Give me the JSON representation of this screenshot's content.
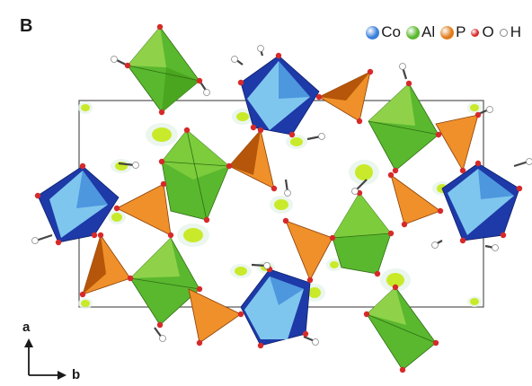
{
  "panel_label": "B",
  "legend": [
    {
      "label": "Co",
      "color": "#3a7fd9",
      "size": "large"
    },
    {
      "label": "Al",
      "color": "#5ab82e",
      "size": "large"
    },
    {
      "label": "P",
      "color": "#e07c1a",
      "size": "large"
    },
    {
      "label": "O",
      "color": "#d62a2a",
      "size": "small"
    },
    {
      "label": "H",
      "color": "#ffffff",
      "size": "small"
    }
  ],
  "axes": {
    "vertical": "a",
    "horizontal": "b"
  },
  "colors": {
    "co_dark": "#1d3aa8",
    "co_light": "#7fc6ee",
    "al_dark": "#3f9a1c",
    "al_light": "#7dcc3c",
    "p_dark": "#b5560a",
    "p_light": "#f0902a",
    "oxygen": "#d62a2a",
    "hydrogen": "#ffffff",
    "density": "#c9ea2a",
    "cell": "#555555"
  }
}
